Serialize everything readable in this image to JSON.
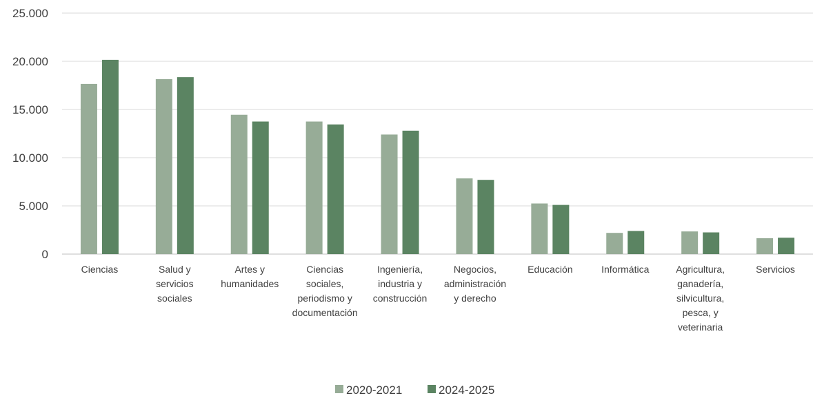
{
  "chart_data": {
    "type": "bar",
    "title": "",
    "xlabel": "",
    "ylabel": "",
    "ylim": [
      0,
      25000
    ],
    "yticks": [
      "0",
      "5.000",
      "10.000",
      "15.000",
      "20.000",
      "25.000"
    ],
    "grid": true,
    "legend_position": "bottom",
    "categories": [
      [
        "Ciencias"
      ],
      [
        "Salud y",
        "servicios",
        "sociales"
      ],
      [
        "Artes y",
        "humanidades"
      ],
      [
        "Ciencias",
        "sociales,",
        "periodismo y",
        "documentación"
      ],
      [
        "Ingeniería,",
        "industria y",
        "construcción"
      ],
      [
        "Negocios,",
        "administración",
        "y derecho"
      ],
      [
        "Educación"
      ],
      [
        "Informática"
      ],
      [
        "Agricultura,",
        "ganadería,",
        "silvicultura,",
        "pesca, y",
        "veterinaria"
      ],
      [
        "Servicios"
      ]
    ],
    "series": [
      {
        "name": "2020-2021",
        "color": "#97ac97",
        "values": [
          17650,
          18150,
          14450,
          13750,
          12400,
          7850,
          5250,
          2200,
          2350,
          1650
        ]
      },
      {
        "name": "2024-2025",
        "color": "#5b8462",
        "values": [
          20150,
          18350,
          13750,
          13450,
          12800,
          7700,
          5100,
          2400,
          2250,
          1700
        ]
      }
    ]
  }
}
